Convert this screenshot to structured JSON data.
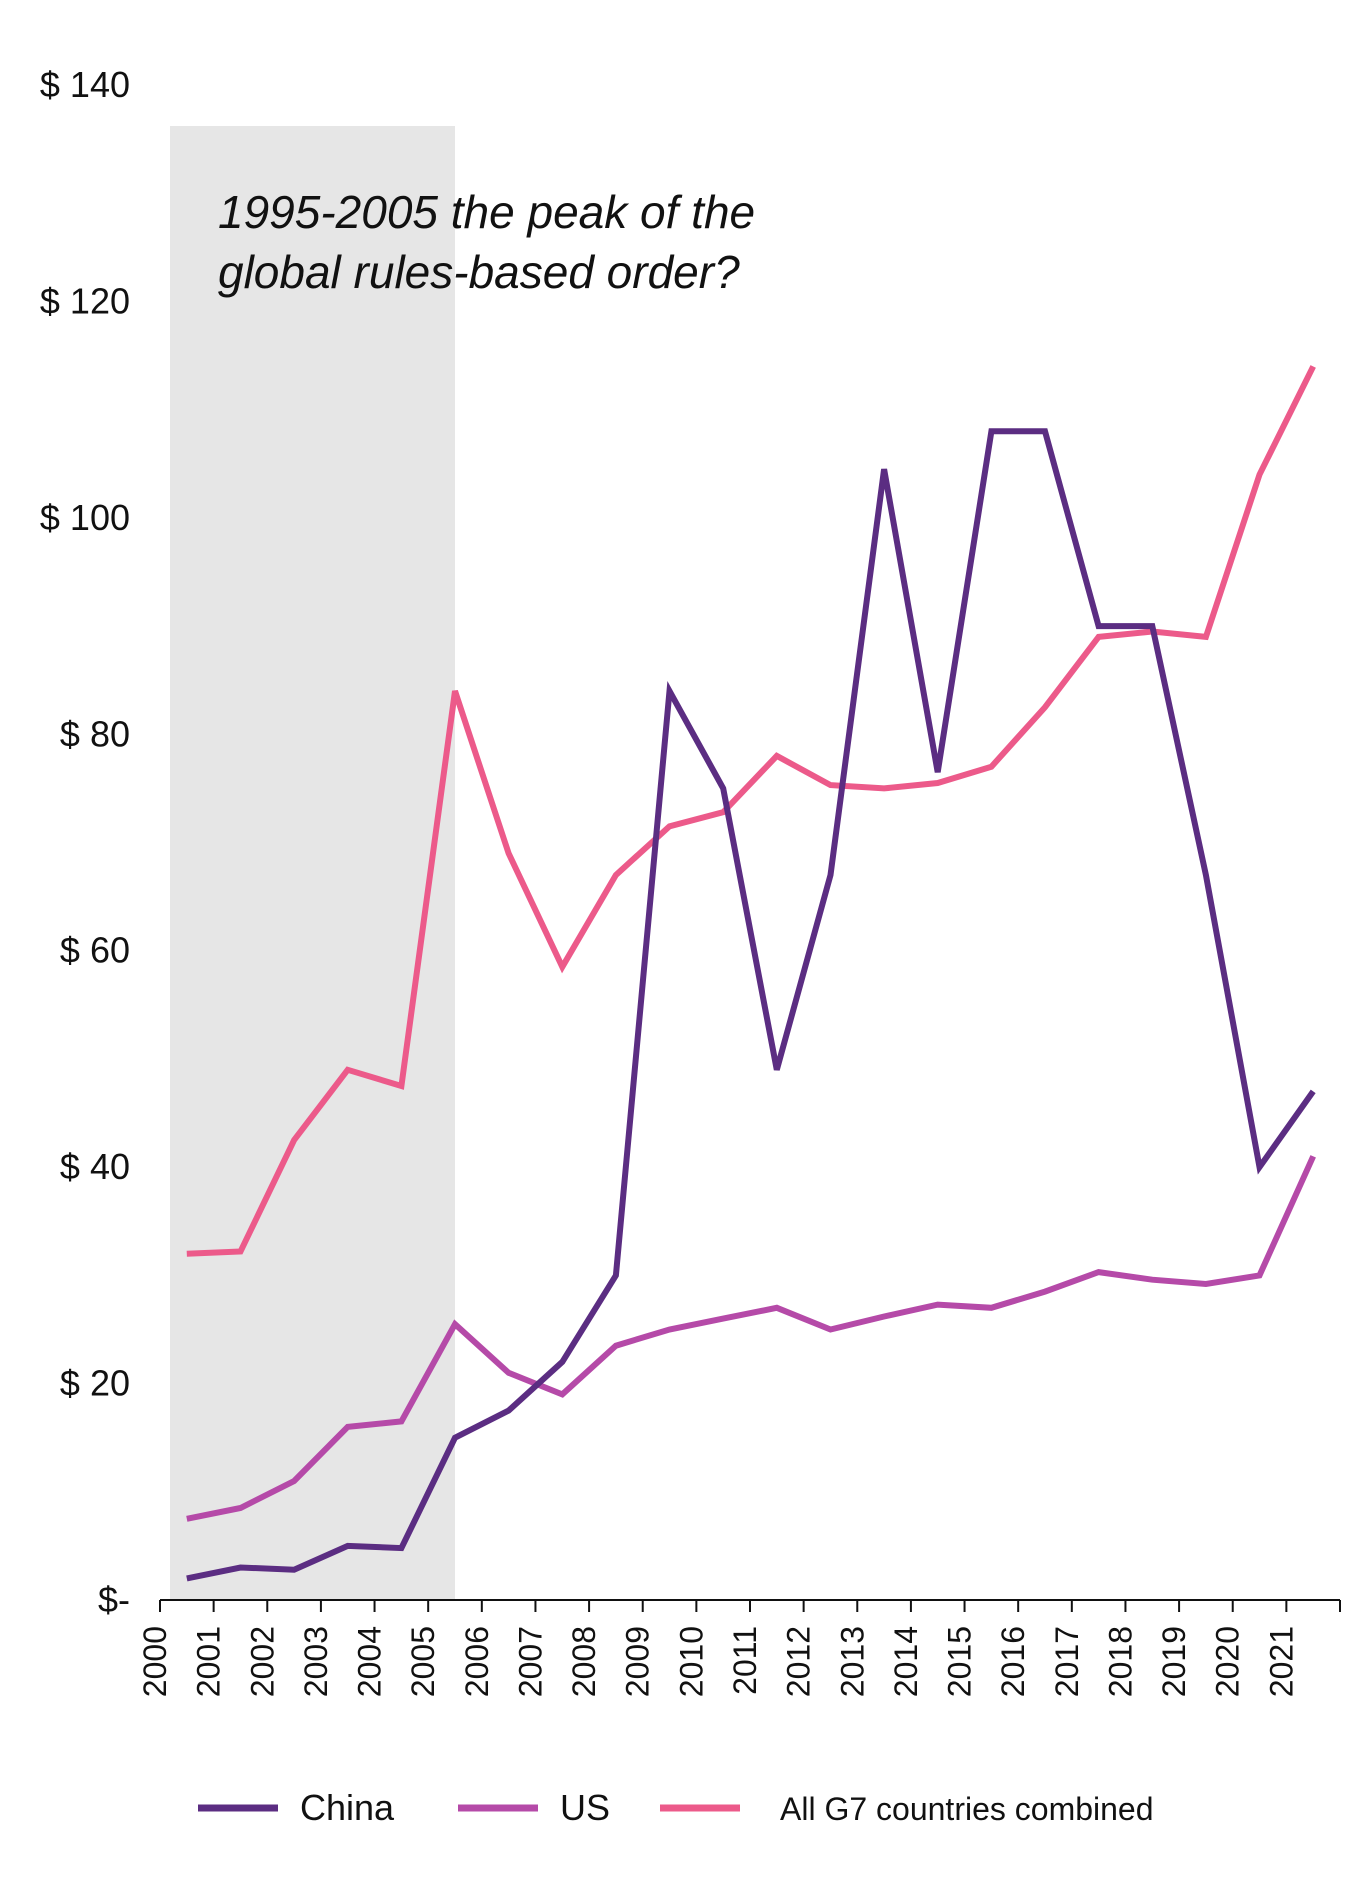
{
  "chart_data": {
    "type": "line",
    "title": "",
    "xlabel": "",
    "ylabel": "",
    "x": [
      "2000",
      "2001",
      "2002",
      "2003",
      "2004",
      "2005",
      "2006",
      "2007",
      "2008",
      "2009",
      "2010",
      "2011",
      "2012",
      "2013",
      "2014",
      "2015",
      "2016",
      "2017",
      "2018",
      "2019",
      "2020",
      "2021"
    ],
    "ylim": [
      0,
      140
    ],
    "yticks": [
      {
        "value": 0,
        "label": "$-"
      },
      {
        "value": 20,
        "label": "$ 20"
      },
      {
        "value": 40,
        "label": "$ 40"
      },
      {
        "value": 60,
        "label": "$ 60"
      },
      {
        "value": 80,
        "label": "$ 80"
      },
      {
        "value": 100,
        "label": "$ 100"
      },
      {
        "value": 120,
        "label": "$ 120"
      },
      {
        "value": 140,
        "label": "$ 140"
      }
    ],
    "shaded_region": {
      "from": "2000",
      "to": "2005",
      "color": "#e6e6e6"
    },
    "annotation": [
      "1995-2005 the peak of the",
      "global rules-based order?"
    ],
    "legend_position": "bottom",
    "series": [
      {
        "name": "China",
        "color": "#5b2d82",
        "values": [
          2.0,
          3.0,
          2.8,
          5.0,
          4.8,
          15.0,
          17.5,
          22.0,
          30.0,
          84.0,
          75.0,
          49.0,
          67.0,
          104.5,
          76.5,
          108.0,
          108.0,
          90.0,
          90.0,
          67.0,
          40.0,
          47.0
        ]
      },
      {
        "name": "US",
        "color": "#b54aa8",
        "values": [
          7.5,
          8.5,
          11.0,
          16.0,
          16.5,
          25.5,
          21.0,
          19.0,
          23.5,
          25.0,
          26.0,
          27.0,
          25.0,
          26.2,
          27.3,
          27.0,
          28.5,
          30.3,
          29.6,
          29.2,
          30.0,
          41.0
        ]
      },
      {
        "name": "All G7 countries combined",
        "color": "#ec5a8a",
        "values": [
          32.0,
          32.2,
          42.5,
          49.0,
          47.5,
          84.0,
          69.0,
          58.5,
          67.0,
          71.5,
          72.8,
          78.0,
          75.3,
          75.0,
          75.5,
          77.0,
          82.5,
          89.0,
          89.5,
          89.0,
          104.0,
          114.0
        ]
      }
    ]
  }
}
